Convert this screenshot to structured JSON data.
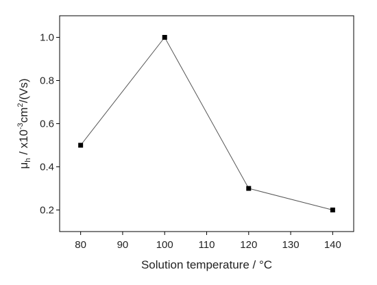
{
  "chart_data": {
    "type": "line",
    "title": "",
    "xlabel": "Solution temperature / °C",
    "ylabel": {
      "symbol": "μ",
      "subscript": "h",
      "prefix": " / x10",
      "exponent": "-3",
      "unit": "cm",
      "unit_exponent": "2",
      "suffix": "/(Vs)"
    },
    "xlim": [
      75,
      145
    ],
    "ylim": [
      0.1,
      1.1
    ],
    "xticks": [
      80,
      90,
      100,
      110,
      120,
      130,
      140
    ],
    "yticks": [
      0.2,
      0.4,
      0.6,
      0.8,
      1.0
    ],
    "ytick_labels": [
      "0.2",
      "0.4",
      "0.6",
      "0.8",
      "1.0"
    ],
    "grid": false,
    "legend": "none",
    "series": [
      {
        "x": [
          80,
          100,
          120,
          140
        ],
        "y": [
          0.5,
          1.0,
          0.3,
          0.2
        ],
        "marker": "square",
        "line_color": "#555555",
        "marker_color": "#000000"
      }
    ]
  }
}
